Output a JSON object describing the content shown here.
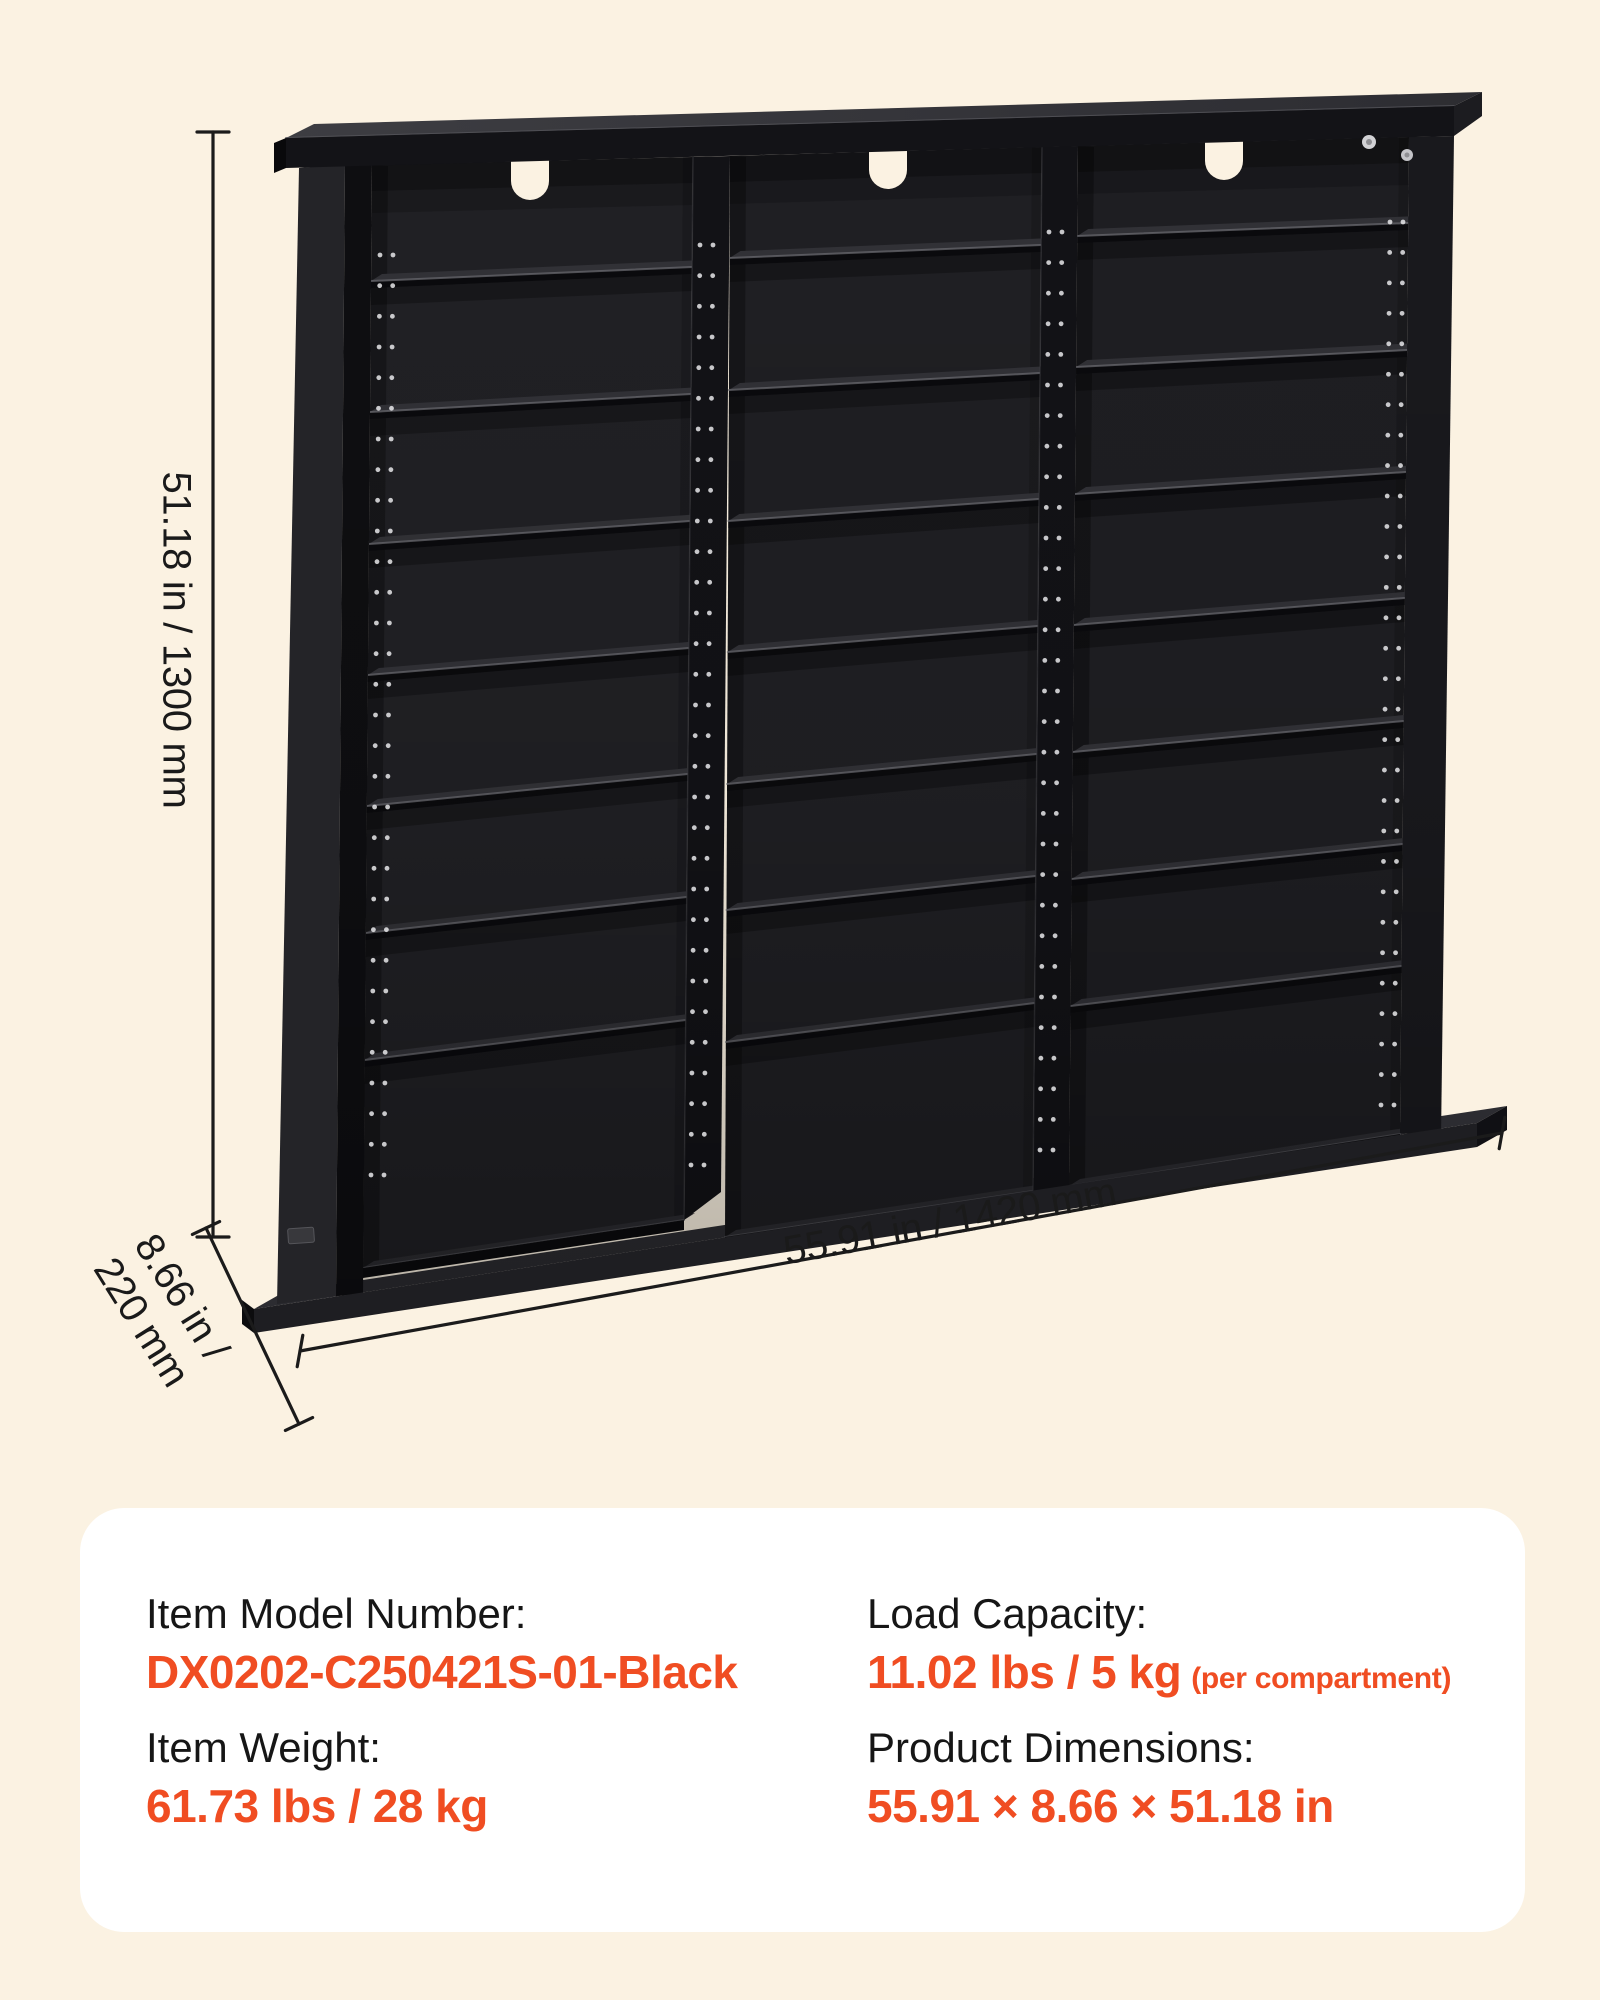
{
  "dimension_labels": {
    "height": "51.18 in / 1300 mm",
    "width": "55.91 in / 1420 mm",
    "depth_line1": "8.66 in /",
    "depth_line2": "220 mm"
  },
  "spec_card": {
    "items": [
      {
        "label": "Item Model Number:",
        "value": "DX0202-C250421S-01-Black"
      },
      {
        "label": "Load Capacity:",
        "value": "11.02 lbs / 5 kg",
        "suffix": "(per compartment)"
      },
      {
        "label": "Item Weight:",
        "value": "61.73 lbs / 28 kg"
      },
      {
        "label": "Product Dimensions:",
        "value": "55.91 × 8.66 × 51.18 in"
      }
    ]
  },
  "product": {
    "type": "media storage shelf, 3 columns, 24 compartments, black",
    "columns": 3,
    "shelves_per_column": 7
  },
  "colors": {
    "background": "#FBF2E2",
    "card": "#FFFFFF",
    "accent": "#F04D22",
    "ink": "#161616",
    "shelf_black": "#1f1f23"
  }
}
